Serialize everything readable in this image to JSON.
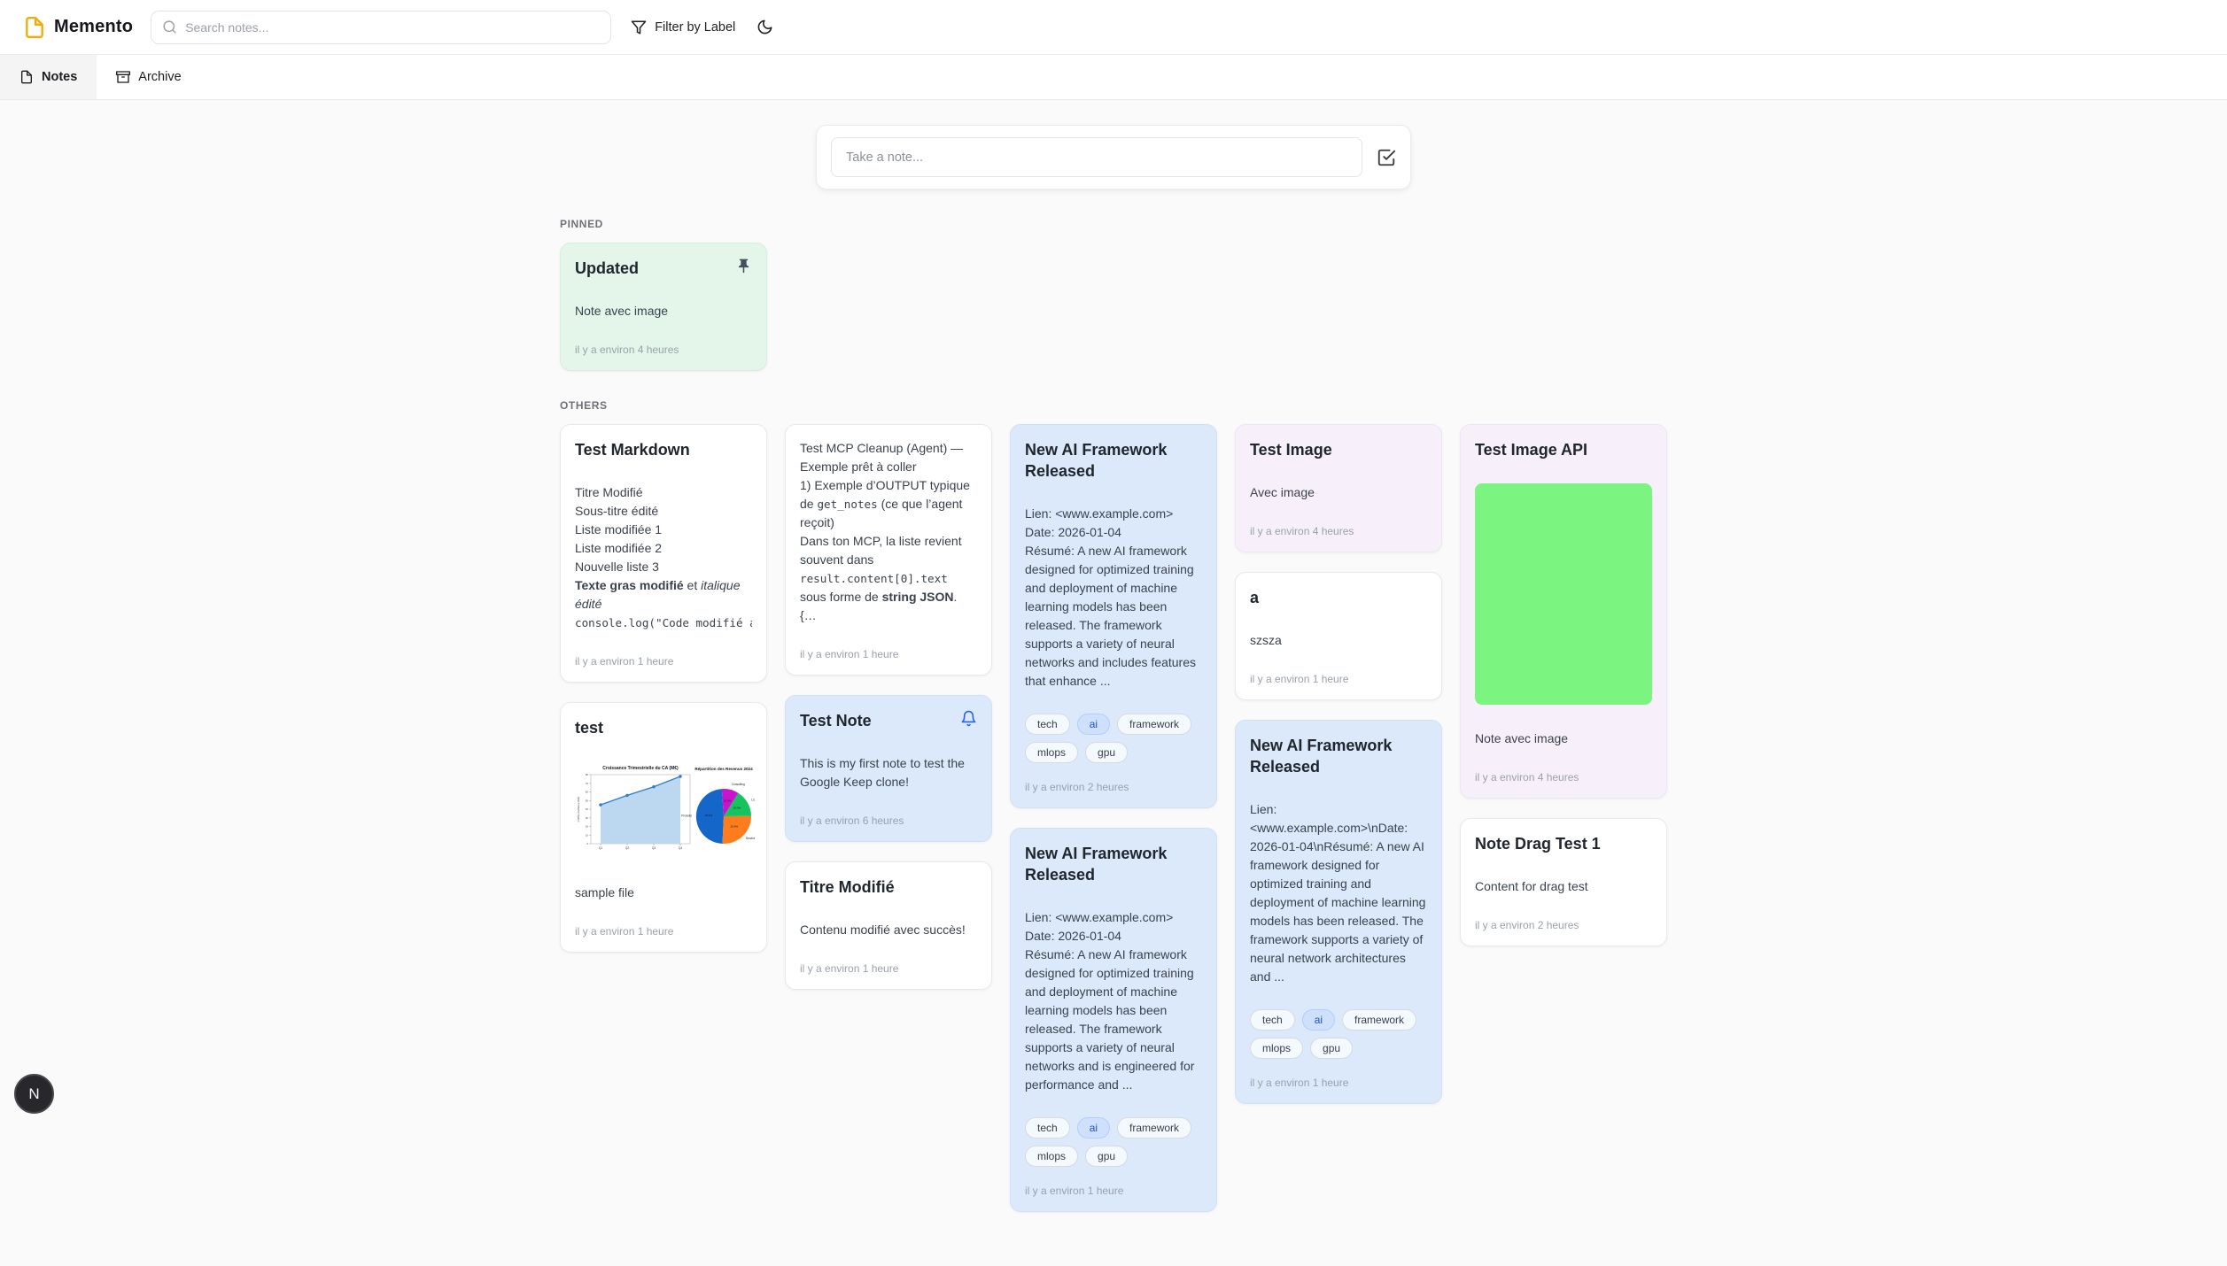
{
  "header": {
    "app_name": "Memento",
    "search_placeholder": "Search notes...",
    "filter_button": "Filter by Label",
    "icons": [
      "note-logo-icon",
      "search-icon",
      "funnel-icon",
      "moon-icon"
    ]
  },
  "tabs": [
    {
      "label": "Notes",
      "icon": "file-icon",
      "active": true
    },
    {
      "label": "Archive",
      "icon": "archive-icon",
      "active": false
    }
  ],
  "composer": {
    "placeholder": "Take a note...",
    "icon": "checkbox-icon"
  },
  "sections": {
    "pinned": "PINNED",
    "others": "OTHERS"
  },
  "fab": {
    "label": "N"
  },
  "colors": {
    "accent_blue": "#2563eb",
    "note_green": "#e3f6e9",
    "note_blue": "#dbe9fb",
    "note_lavender": "#f7f0fb",
    "tag_ai_bg": "#cfe0fd",
    "tag_ai_text": "#1e4fd6",
    "image_green": "#7bf57f",
    "pin_icon": "#45505e"
  },
  "pinned_notes": [
    {
      "title": "Updated",
      "color": "green",
      "icon": "pin",
      "body": [
        {
          "parts": [
            {
              "t": "text",
              "v": "Note avec image"
            }
          ]
        }
      ],
      "time": "il y a environ 4 heures"
    }
  ],
  "note_columns": [
    [
      {
        "title": "Test Markdown",
        "body": [
          {
            "parts": [
              {
                "t": "text",
                "v": "Titre Modifié"
              }
            ]
          },
          {
            "parts": [
              {
                "t": "text",
                "v": "Sous-titre édité"
              }
            ]
          },
          {
            "parts": [
              {
                "t": "text",
                "v": "Liste modifiée 1"
              }
            ]
          },
          {
            "parts": [
              {
                "t": "text",
                "v": "Liste modifiée 2"
              }
            ]
          },
          {
            "parts": [
              {
                "t": "text",
                "v": "Nouvelle liste 3"
              }
            ]
          },
          {
            "parts": [
              {
                "t": "bold",
                "v": "Texte gras modifié"
              },
              {
                "t": "text",
                "v": " et "
              },
              {
                "t": "italic",
                "v": "italique édité"
              }
            ]
          },
          {
            "nowrap": true,
            "parts": [
              {
                "t": "code",
                "v": "console.log(\"Code modifié avec succès\");"
              }
            ]
          }
        ],
        "time": "il y a environ 1 heure"
      },
      {
        "title": "test",
        "image": "charts",
        "body": [
          {
            "parts": [
              {
                "t": "text",
                "v": "sample file"
              }
            ]
          }
        ],
        "time": "il y a environ 1 heure"
      }
    ],
    [
      {
        "body": [
          {
            "parts": [
              {
                "t": "text",
                "v": "Test MCP Cleanup (Agent) — Exemple prêt à coller"
              }
            ]
          },
          {
            "parts": [
              {
                "t": "text",
                "v": "1) Exemple d’OUTPUT typique de "
              },
              {
                "t": "code",
                "v": "get_notes"
              },
              {
                "t": "text",
                "v": " (ce que l’agent reçoit)"
              }
            ]
          },
          {
            "parts": [
              {
                "t": "text",
                "v": "Dans ton MCP, la liste revient souvent dans "
              },
              {
                "t": "code",
                "v": "result.content[0].text"
              },
              {
                "t": "text",
                "v": " sous forme de "
              },
              {
                "t": "bold",
                "v": "string JSON"
              },
              {
                "t": "text",
                "v": "."
              }
            ]
          },
          {
            "parts": [
              {
                "t": "text",
                "v": "{…"
              }
            ]
          }
        ],
        "time": "il y a environ 1 heure"
      },
      {
        "title": "Test Note",
        "color": "blue",
        "icon": "bell",
        "body": [
          {
            "parts": [
              {
                "t": "text",
                "v": "This is my first note to test the Google Keep clone!"
              }
            ]
          }
        ],
        "time": "il y a environ 6 heures"
      },
      {
        "title": "Titre Modifié",
        "body": [
          {
            "parts": [
              {
                "t": "text",
                "v": "Contenu modifié avec succès!"
              }
            ]
          }
        ],
        "time": "il y a environ 1 heure"
      }
    ],
    [
      {
        "title": "New AI Framework Released",
        "color": "blue",
        "body": [
          {
            "parts": [
              {
                "t": "text",
                "v": "Lien: <www.example.com>"
              }
            ]
          },
          {
            "parts": [
              {
                "t": "text",
                "v": "Date: 2026-01-04"
              }
            ]
          },
          {
            "parts": [
              {
                "t": "text",
                "v": "Résumé: A new AI framework designed for optimized training and deployment of machine learning models has been released. The framework supports a variety of neural networks and includes features that enhance ..."
              }
            ]
          }
        ],
        "tags": [
          {
            "label": "tech"
          },
          {
            "label": "ai",
            "highlighted": true
          },
          {
            "label": "framework"
          },
          {
            "label": "mlops"
          },
          {
            "label": "gpu"
          }
        ],
        "time": "il y a environ 2 heures"
      },
      {
        "title": "New AI Framework Released",
        "color": "blue",
        "body": [
          {
            "parts": [
              {
                "t": "text",
                "v": "Lien: <www.example.com>"
              }
            ]
          },
          {
            "parts": [
              {
                "t": "text",
                "v": "Date: 2026-01-04"
              }
            ]
          },
          {
            "parts": [
              {
                "t": "text",
                "v": "Résumé: A new AI framework designed for optimized training and deployment of machine learning models has been released. The framework supports a variety of neural networks and is engineered for performance and ..."
              }
            ]
          }
        ],
        "tags": [
          {
            "label": "tech"
          },
          {
            "label": "ai",
            "highlighted": true
          },
          {
            "label": "framework"
          },
          {
            "label": "mlops"
          },
          {
            "label": "gpu"
          }
        ],
        "time": "il y a environ 1 heure"
      }
    ],
    [
      {
        "title": "Test Image",
        "color": "lavender",
        "body": [
          {
            "parts": [
              {
                "t": "text",
                "v": "Avec image"
              }
            ]
          }
        ],
        "time": "il y a environ 4 heures"
      },
      {
        "title": "a",
        "body": [
          {
            "parts": [
              {
                "t": "text",
                "v": "szsza"
              }
            ]
          }
        ],
        "time": "il y a environ 1 heure"
      },
      {
        "title": "New AI Framework Released",
        "color": "blue",
        "body": [
          {
            "parts": [
              {
                "t": "text",
                "v": "Lien: <www.example.com>\\nDate: 2026-01-04\\nRésumé: A new AI framework designed for optimized training and deployment of machine learning models has been released. The framework supports a variety of neural network architectures and ..."
              }
            ]
          }
        ],
        "tags": [
          {
            "label": "tech"
          },
          {
            "label": "ai",
            "highlighted": true
          },
          {
            "label": "framework"
          },
          {
            "label": "mlops"
          },
          {
            "label": "gpu"
          }
        ],
        "time": "il y a environ 1 heure"
      }
    ],
    [
      {
        "title": "Test Image API",
        "color": "lavender",
        "image": "green",
        "body": [
          {
            "parts": [
              {
                "t": "text",
                "v": "Note avec image"
              }
            ]
          }
        ],
        "time": "il y a environ 4 heures"
      },
      {
        "title": "Note Drag Test 1",
        "body": [
          {
            "parts": [
              {
                "t": "text",
                "v": "Content for drag test"
              }
            ]
          }
        ],
        "time": "il y a environ 2 heures"
      }
    ]
  ],
  "chart_data": [
    {
      "type": "area",
      "title": "Croissance Trimestrielle du CA (M€)",
      "ylabel": "Chiffre d'affaires (M€)",
      "xlabel": "",
      "categories": [
        "Q1",
        "Q2",
        "Q3",
        "Q4"
      ],
      "values": [
        45,
        56,
        66,
        78
      ],
      "ylim": [
        0,
        80
      ],
      "line_color": "#2b7bd4",
      "fill_color": "#bcd7f0"
    },
    {
      "type": "pie",
      "title": "Répartition des Revenus 2024",
      "start_angle": 94,
      "segments": [
        {
          "label": "Produits",
          "value": 48.1,
          "color": "#1467c8"
        },
        {
          "label": "Services",
          "value": 25.9,
          "color": "#fd7c1d"
        },
        {
          "label": "Licences",
          "value": 16.0,
          "color": "#17c35f"
        },
        {
          "label": "Consulting",
          "value": 10.0,
          "color": "#c815cd"
        }
      ]
    }
  ]
}
